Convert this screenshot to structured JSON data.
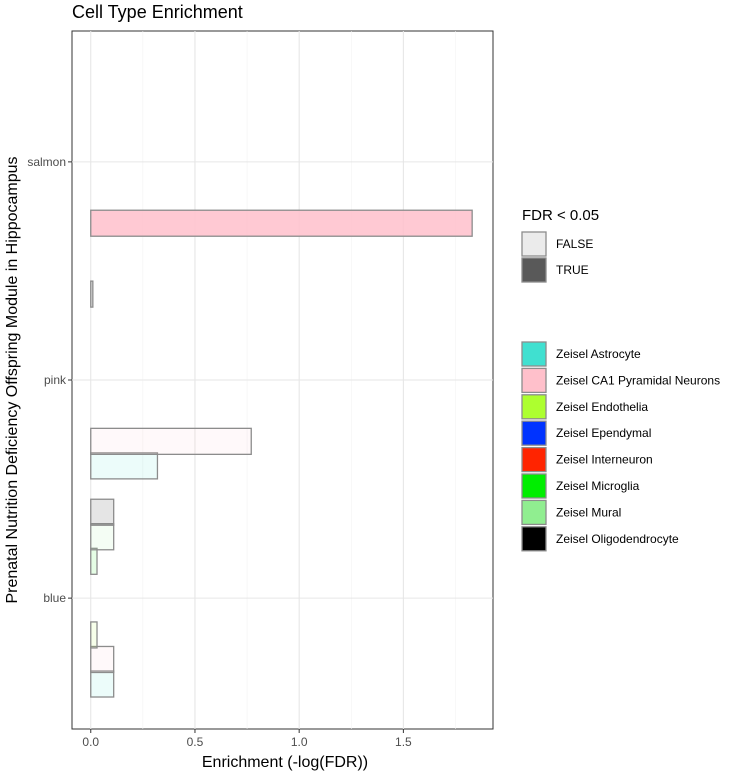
{
  "chart_data": {
    "type": "bar",
    "orientation": "horizontal",
    "title": "Cell Type Enrichment",
    "xlabel": "Enrichment (-log(FDR))",
    "ylabel": "Prenatal Nutrition Deficiency Offspring Module in Hippocampus",
    "xlim": [
      -0.09,
      1.93
    ],
    "xticks": [
      0.0,
      0.5,
      1.0,
      1.5
    ],
    "xtick_labels": [
      "0.0",
      "0.5",
      "1.0",
      "1.5"
    ],
    "categories": [
      "blue",
      "pink",
      "salmon"
    ],
    "grid": true,
    "series": [
      {
        "name": "Zeisel Astrocyte",
        "color": "#40E0D0",
        "values": [
          0.11,
          0.32,
          0.0
        ]
      },
      {
        "name": "Zeisel CA1 Pyramidal Neurons",
        "color": "#FFC0CB",
        "values": [
          0.11,
          0.77,
          1.83
        ]
      },
      {
        "name": "Zeisel Endothelia",
        "color": "#ADFF2F",
        "values": [
          0.03,
          0.0,
          0.0
        ]
      },
      {
        "name": "Zeisel Ependymal",
        "color": "#0033FF",
        "values": [
          0.0,
          0.0,
          0.0
        ]
      },
      {
        "name": "Zeisel Interneuron",
        "color": "#FF2400",
        "values": [
          0.0,
          0.0,
          0.0
        ]
      },
      {
        "name": "Zeisel Microglia",
        "color": "#00EE00",
        "values": [
          0.03,
          0.0,
          0.0
        ]
      },
      {
        "name": "Zeisel Mural",
        "color": "#90EE90",
        "values": [
          0.11,
          0.0,
          0.0
        ]
      },
      {
        "name": "Zeisel Oligodendrocyte",
        "color": "#000000",
        "values": [
          0.11,
          0.01,
          0.0
        ]
      }
    ],
    "fdr_significant": [
      [
        false,
        false,
        false
      ],
      [
        false,
        false,
        true
      ],
      [
        false,
        false,
        false
      ],
      [
        false,
        false,
        false
      ],
      [
        false,
        false,
        false
      ],
      [
        false,
        false,
        false
      ],
      [
        false,
        false,
        false
      ],
      [
        false,
        false,
        false
      ]
    ],
    "legend": {
      "placement": "right",
      "fill_title": "FDR < 0.05",
      "fill_entries": [
        {
          "label": "FALSE",
          "color": "#EBEBEB"
        },
        {
          "label": "TRUE",
          "color": "#595959"
        }
      ],
      "color_entries": [
        "Zeisel Astrocyte",
        "Zeisel CA1 Pyramidal Neurons",
        "Zeisel Endothelia",
        "Zeisel Ependymal",
        "Zeisel Interneuron",
        "Zeisel Microglia",
        "Zeisel Mural",
        "Zeisel Oligodendrocyte"
      ]
    }
  }
}
